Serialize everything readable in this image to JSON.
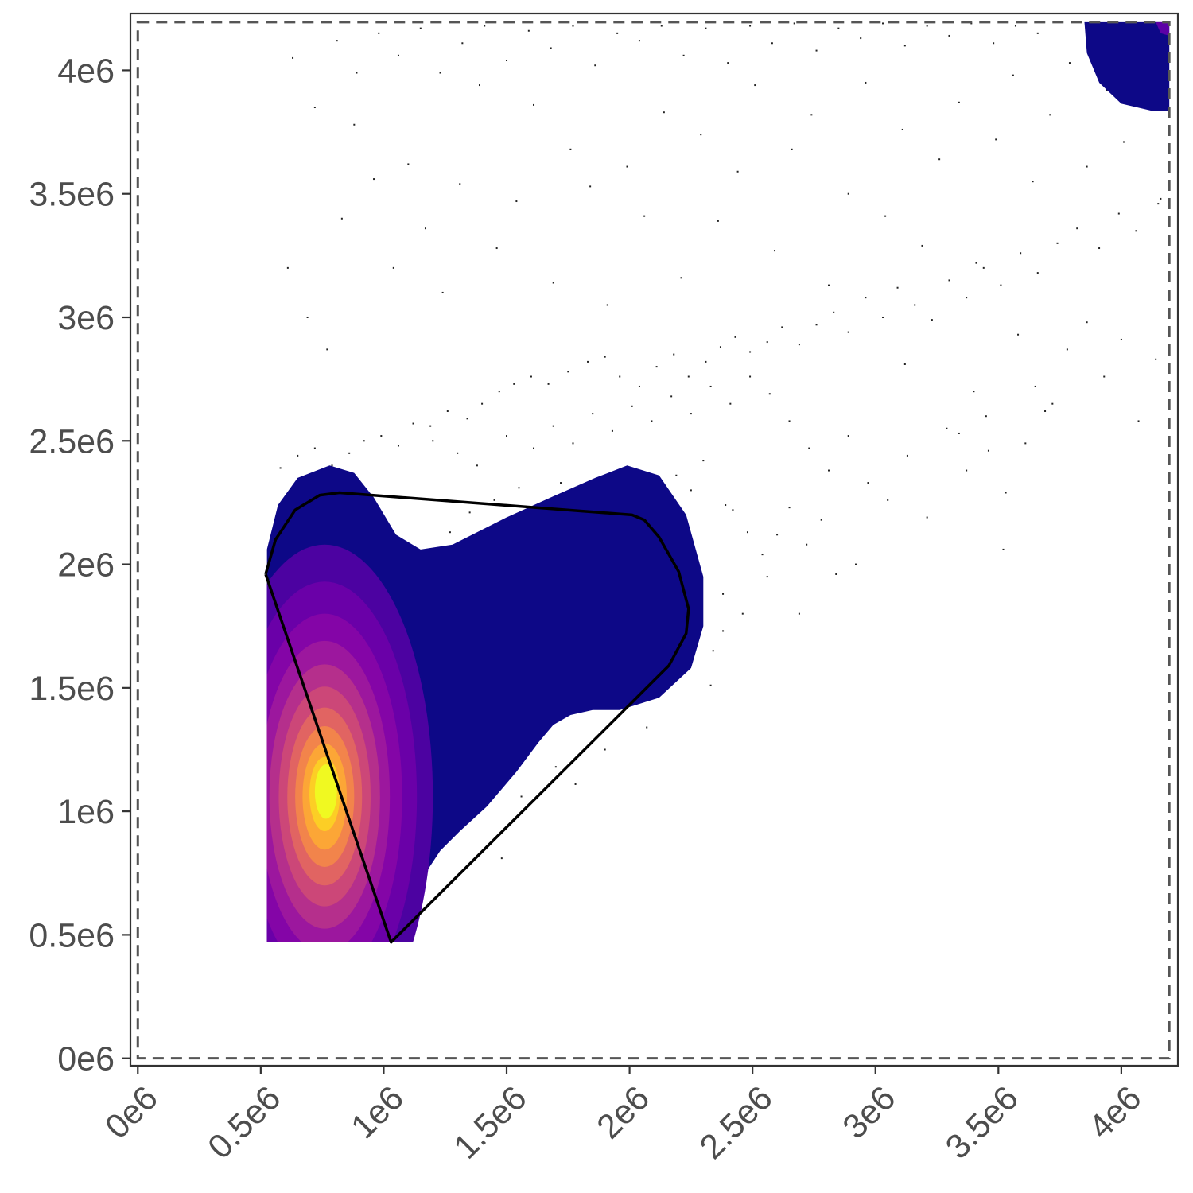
{
  "chart_data": {
    "type": "scatter",
    "title": "",
    "xlabel": "",
    "ylabel": "",
    "xlim": [
      -30000,
      4230000
    ],
    "ylim": [
      -30000,
      4230000
    ],
    "x_ticks": [
      {
        "value": 0,
        "label": "0e6"
      },
      {
        "value": 500000,
        "label": "0.5e6"
      },
      {
        "value": 1000000,
        "label": "1e6"
      },
      {
        "value": 1500000,
        "label": "1.5e6"
      },
      {
        "value": 2000000,
        "label": "2e6"
      },
      {
        "value": 2500000,
        "label": "2.5e6"
      },
      {
        "value": 3000000,
        "label": "3e6"
      },
      {
        "value": 3500000,
        "label": "3.5e6"
      },
      {
        "value": 4000000,
        "label": "4e6"
      }
    ],
    "y_ticks": [
      {
        "value": 0,
        "label": "0e6"
      },
      {
        "value": 500000,
        "label": "0.5e6"
      },
      {
        "value": 1000000,
        "label": "1e6"
      },
      {
        "value": 1500000,
        "label": "1.5e6"
      },
      {
        "value": 2000000,
        "label": "2e6"
      },
      {
        "value": 2500000,
        "label": "2.5e6"
      },
      {
        "value": 3000000,
        "label": "3e6"
      },
      {
        "value": 3500000,
        "label": "3.5e6"
      },
      {
        "value": 4000000,
        "label": "4e6"
      }
    ],
    "grid": false,
    "legend": "none",
    "bounds_rectangle": {
      "x": [
        0,
        4195000
      ],
      "y": [
        0,
        4195000
      ],
      "style": "dashed",
      "color": "#555555"
    },
    "density_levels": [
      {
        "color": "#0d0887",
        "polygon": [
          [
            525000,
            2060000
          ],
          [
            570000,
            2240000
          ],
          [
            650000,
            2350000
          ],
          [
            780000,
            2400000
          ],
          [
            880000,
            2370000
          ],
          [
            960000,
            2270000
          ],
          [
            1050000,
            2120000
          ],
          [
            1150000,
            2060000
          ],
          [
            1280000,
            2080000
          ],
          [
            1500000,
            2190000
          ],
          [
            1700000,
            2280000
          ],
          [
            1860000,
            2350000
          ],
          [
            1990000,
            2400000
          ],
          [
            2120000,
            2360000
          ],
          [
            2230000,
            2200000
          ],
          [
            2300000,
            1950000
          ],
          [
            2300000,
            1750000
          ],
          [
            2250000,
            1580000
          ],
          [
            2120000,
            1460000
          ],
          [
            1960000,
            1410000
          ],
          [
            1850000,
            1410000
          ],
          [
            1760000,
            1390000
          ],
          [
            1690000,
            1350000
          ],
          [
            1630000,
            1280000
          ],
          [
            1540000,
            1160000
          ],
          [
            1420000,
            1020000
          ],
          [
            1310000,
            920000
          ],
          [
            1230000,
            840000
          ],
          [
            1170000,
            750000
          ],
          [
            1130000,
            640000
          ],
          [
            1080000,
            540000
          ],
          [
            1000000,
            470000
          ],
          [
            525000,
            470000
          ]
        ]
      },
      {
        "color": "#0d0887",
        "polygon": [
          [
            3850000,
            4195000
          ],
          [
            4195000,
            4195000
          ],
          [
            4195000,
            3835000
          ],
          [
            4130000,
            3835000
          ],
          [
            4000000,
            3865000
          ],
          [
            3910000,
            3950000
          ],
          [
            3860000,
            4070000
          ]
        ]
      },
      {
        "color": "#5c01a6",
        "polygon": [
          [
            4140000,
            4195000
          ],
          [
            4195000,
            4195000
          ],
          [
            4195000,
            4140000
          ],
          [
            4160000,
            4150000
          ]
        ]
      },
      {
        "color": "#4c02a1",
        "ellipse": {
          "cx": 760000,
          "cy": 1060000,
          "rx": 440000,
          "ry": 1020000
        }
      },
      {
        "color": "#6a00a8",
        "ellipse": {
          "cx": 760000,
          "cy": 1060000,
          "rx": 375000,
          "ry": 870000
        }
      },
      {
        "color": "#8405a7",
        "ellipse": {
          "cx": 760000,
          "cy": 1060000,
          "rx": 315000,
          "ry": 740000
        }
      },
      {
        "color": "#9c179e",
        "ellipse": {
          "cx": 760000,
          "cy": 1060000,
          "rx": 265000,
          "ry": 630000
        }
      },
      {
        "color": "#b52f8c",
        "ellipse": {
          "cx": 760000,
          "cy": 1060000,
          "rx": 225000,
          "ry": 535000
        }
      },
      {
        "color": "#cc4778",
        "ellipse": {
          "cx": 760000,
          "cy": 1060000,
          "rx": 187000,
          "ry": 445000
        }
      },
      {
        "color": "#e16462",
        "ellipse": {
          "cx": 760000,
          "cy": 1060000,
          "rx": 152000,
          "ry": 360000
        }
      },
      {
        "color": "#f2844b",
        "ellipse": {
          "cx": 760000,
          "cy": 1060000,
          "rx": 120000,
          "ry": 285000
        }
      },
      {
        "color": "#fca636",
        "ellipse": {
          "cx": 760000,
          "cy": 1060000,
          "rx": 90000,
          "ry": 215000
        }
      },
      {
        "color": "#fcce25",
        "ellipse": {
          "cx": 760000,
          "cy": 1070000,
          "rx": 62000,
          "ry": 150000
        }
      },
      {
        "color": "#f0f921",
        "ellipse": {
          "cx": 765000,
          "cy": 1080000,
          "rx": 45000,
          "ry": 110000
        }
      }
    ],
    "density_clip_x_min": 525000,
    "density_clip_y_min": 470000,
    "gate_polygon": {
      "color": "#000000",
      "points": [
        [
          520000,
          1960000
        ],
        [
          560000,
          2100000
        ],
        [
          640000,
          2220000
        ],
        [
          740000,
          2280000
        ],
        [
          820000,
          2290000
        ],
        [
          2010000,
          2200000
        ],
        [
          2060000,
          2180000
        ],
        [
          2120000,
          2110000
        ],
        [
          2200000,
          1970000
        ],
        [
          2240000,
          1820000
        ],
        [
          2230000,
          1720000
        ],
        [
          2160000,
          1590000
        ],
        [
          1030000,
          470000
        ],
        [
          520000,
          1960000
        ]
      ]
    },
    "scatter_points": [
      [
        1270000,
        2130000
      ],
      [
        1350000,
        2210000
      ],
      [
        1450000,
        2260000
      ],
      [
        1550000,
        2310000
      ],
      [
        1620000,
        2200000
      ],
      [
        1720000,
        2330000
      ],
      [
        1800000,
        2290000
      ],
      [
        1880000,
        2240000
      ],
      [
        1980000,
        2320000
      ],
      [
        2080000,
        2280000
      ],
      [
        2190000,
        2360000
      ],
      [
        2250000,
        2300000
      ],
      [
        2300000,
        2420000
      ],
      [
        2390000,
        2240000
      ],
      [
        2380000,
        1880000
      ],
      [
        2460000,
        1800000
      ],
      [
        2380000,
        1730000
      ],
      [
        2340000,
        1650000
      ],
      [
        2330000,
        1510000
      ],
      [
        2070000,
        1340000
      ],
      [
        1900000,
        1250000
      ],
      [
        1780000,
        1110000
      ],
      [
        1700000,
        1180000
      ],
      [
        1560000,
        1060000
      ],
      [
        1480000,
        810000
      ],
      [
        1420000,
        860000
      ],
      [
        580000,
        2390000
      ],
      [
        650000,
        2440000
      ],
      [
        720000,
        2470000
      ],
      [
        790000,
        2400000
      ],
      [
        860000,
        2450000
      ],
      [
        920000,
        2500000
      ],
      [
        990000,
        2520000
      ],
      [
        1060000,
        2480000
      ],
      [
        1120000,
        2570000
      ],
      [
        1190000,
        2560000
      ],
      [
        1260000,
        2620000
      ],
      [
        1340000,
        2590000
      ],
      [
        1400000,
        2650000
      ],
      [
        1470000,
        2700000
      ],
      [
        1530000,
        2730000
      ],
      [
        1600000,
        2760000
      ],
      [
        1670000,
        2730000
      ],
      [
        1750000,
        2780000
      ],
      [
        1830000,
        2820000
      ],
      [
        1900000,
        2840000
      ],
      [
        1960000,
        2760000
      ],
      [
        2040000,
        2720000
      ],
      [
        2110000,
        2800000
      ],
      [
        2180000,
        2850000
      ],
      [
        2240000,
        2760000
      ],
      [
        2310000,
        2820000
      ],
      [
        2370000,
        2880000
      ],
      [
        2430000,
        2920000
      ],
      [
        2490000,
        2860000
      ],
      [
        2560000,
        2900000
      ],
      [
        2620000,
        2960000
      ],
      [
        2690000,
        2890000
      ],
      [
        2760000,
        2970000
      ],
      [
        2830000,
        3020000
      ],
      [
        2890000,
        2940000
      ],
      [
        2960000,
        3080000
      ],
      [
        3030000,
        3000000
      ],
      [
        3090000,
        3120000
      ],
      [
        3160000,
        3050000
      ],
      [
        3230000,
        2990000
      ],
      [
        3300000,
        3150000
      ],
      [
        3370000,
        3080000
      ],
      [
        3440000,
        3200000
      ],
      [
        3510000,
        3130000
      ],
      [
        3590000,
        3260000
      ],
      [
        3660000,
        3180000
      ],
      [
        3740000,
        3300000
      ],
      [
        3820000,
        3360000
      ],
      [
        3910000,
        3280000
      ],
      [
        3990000,
        3420000
      ],
      [
        4060000,
        3350000
      ],
      [
        4150000,
        3460000
      ],
      [
        610000,
        3200000
      ],
      [
        690000,
        3000000
      ],
      [
        770000,
        2870000
      ],
      [
        830000,
        3400000
      ],
      [
        880000,
        3780000
      ],
      [
        960000,
        3560000
      ],
      [
        1040000,
        3200000
      ],
      [
        1100000,
        3620000
      ],
      [
        1170000,
        3360000
      ],
      [
        1240000,
        3100000
      ],
      [
        1310000,
        3540000
      ],
      [
        1390000,
        3940000
      ],
      [
        1460000,
        3280000
      ],
      [
        1540000,
        3470000
      ],
      [
        1610000,
        3860000
      ],
      [
        1690000,
        3140000
      ],
      [
        1760000,
        3680000
      ],
      [
        1840000,
        3530000
      ],
      [
        1910000,
        3050000
      ],
      [
        1990000,
        3610000
      ],
      [
        2060000,
        3410000
      ],
      [
        2140000,
        3830000
      ],
      [
        2210000,
        3160000
      ],
      [
        2290000,
        3740000
      ],
      [
        2360000,
        3390000
      ],
      [
        2440000,
        3590000
      ],
      [
        2510000,
        3940000
      ],
      [
        2590000,
        3270000
      ],
      [
        2660000,
        3680000
      ],
      [
        2740000,
        3820000
      ],
      [
        2810000,
        3130000
      ],
      [
        2890000,
        3500000
      ],
      [
        2960000,
        3950000
      ],
      [
        3040000,
        3410000
      ],
      [
        3110000,
        3760000
      ],
      [
        3190000,
        3290000
      ],
      [
        3260000,
        3640000
      ],
      [
        3340000,
        3870000
      ],
      [
        3410000,
        3220000
      ],
      [
        3490000,
        3720000
      ],
      [
        3560000,
        3980000
      ],
      [
        3640000,
        3550000
      ],
      [
        3710000,
        3820000
      ],
      [
        3790000,
        4030000
      ],
      [
        3860000,
        3610000
      ],
      [
        3940000,
        3920000
      ],
      [
        4010000,
        3710000
      ],
      [
        4090000,
        4080000
      ],
      [
        4160000,
        3480000
      ],
      [
        630000,
        4050000
      ],
      [
        720000,
        3850000
      ],
      [
        810000,
        4120000
      ],
      [
        890000,
        3990000
      ],
      [
        980000,
        4150000
      ],
      [
        1060000,
        4060000
      ],
      [
        1150000,
        4170000
      ],
      [
        1230000,
        3990000
      ],
      [
        1320000,
        4110000
      ],
      [
        1410000,
        4180000
      ],
      [
        1500000,
        4040000
      ],
      [
        1590000,
        4160000
      ],
      [
        1680000,
        4090000
      ],
      [
        1770000,
        4180000
      ],
      [
        1860000,
        4020000
      ],
      [
        1950000,
        4150000
      ],
      [
        2040000,
        4120000
      ],
      [
        2130000,
        4180000
      ],
      [
        2220000,
        4060000
      ],
      [
        2310000,
        4170000
      ],
      [
        2400000,
        4030000
      ],
      [
        2490000,
        4180000
      ],
      [
        2580000,
        4110000
      ],
      [
        2670000,
        4190000
      ],
      [
        2760000,
        4080000
      ],
      [
        2850000,
        4170000
      ],
      [
        2940000,
        4130000
      ],
      [
        3030000,
        4190000
      ],
      [
        3120000,
        4100000
      ],
      [
        3210000,
        4180000
      ],
      [
        3300000,
        4140000
      ],
      [
        3390000,
        4190000
      ],
      [
        3480000,
        4110000
      ],
      [
        3570000,
        4180000
      ],
      [
        3660000,
        4150000
      ],
      [
        1200000,
        2500000
      ],
      [
        1300000,
        2450000
      ],
      [
        1380000,
        2400000
      ],
      [
        1500000,
        2520000
      ],
      [
        1610000,
        2470000
      ],
      [
        1690000,
        2560000
      ],
      [
        1770000,
        2490000
      ],
      [
        1850000,
        2610000
      ],
      [
        1930000,
        2540000
      ],
      [
        2010000,
        2640000
      ],
      [
        2090000,
        2580000
      ],
      [
        2170000,
        2680000
      ],
      [
        2250000,
        2610000
      ],
      [
        2330000,
        2720000
      ],
      [
        2410000,
        2650000
      ],
      [
        2490000,
        2760000
      ],
      [
        2570000,
        2690000
      ],
      [
        2650000,
        2580000
      ],
      [
        2730000,
        2470000
      ],
      [
        2810000,
        2380000
      ],
      [
        2890000,
        2520000
      ],
      [
        2970000,
        2330000
      ],
      [
        3050000,
        2260000
      ],
      [
        3130000,
        2440000
      ],
      [
        3210000,
        2190000
      ],
      [
        3290000,
        2550000
      ],
      [
        3370000,
        2380000
      ],
      [
        3450000,
        2600000
      ],
      [
        3530000,
        2290000
      ],
      [
        3610000,
        2490000
      ],
      [
        3690000,
        2620000
      ],
      [
        2540000,
        2040000
      ],
      [
        2600000,
        2120000
      ],
      [
        2650000,
        2230000
      ],
      [
        2720000,
        2080000
      ],
      [
        2780000,
        2180000
      ],
      [
        2840000,
        1960000
      ],
      [
        2920000,
        2000000
      ],
      [
        2690000,
        1800000
      ],
      [
        2560000,
        1950000
      ],
      [
        2480000,
        2130000
      ],
      [
        2420000,
        2220000
      ],
      [
        3520000,
        2060000
      ],
      [
        3120000,
        2810000
      ],
      [
        3340000,
        2530000
      ],
      [
        3400000,
        2700000
      ],
      [
        3460000,
        2460000
      ],
      [
        3580000,
        2930000
      ],
      [
        3650000,
        2720000
      ],
      [
        3720000,
        2650000
      ],
      [
        3780000,
        2870000
      ],
      [
        3860000,
        2980000
      ],
      [
        3930000,
        2760000
      ],
      [
        4000000,
        2910000
      ],
      [
        4070000,
        2580000
      ],
      [
        4140000,
        2830000
      ]
    ]
  }
}
